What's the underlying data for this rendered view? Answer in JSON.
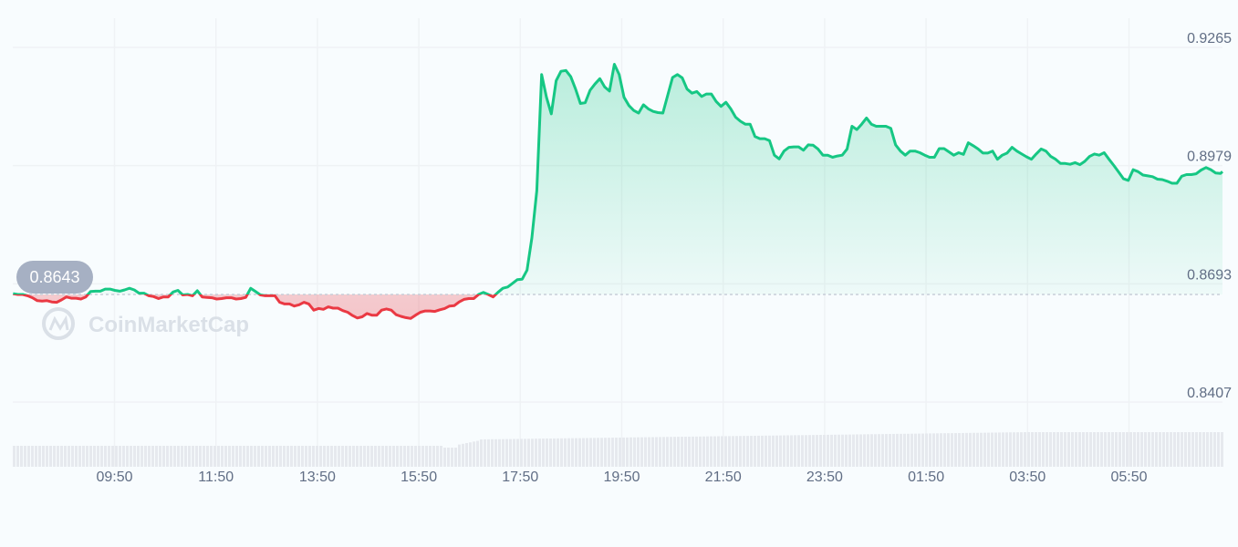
{
  "chart_data": {
    "type": "line",
    "watermark": "CoinMarketCap",
    "open_price_label": "0.8643",
    "open_price": 0.8643,
    "x_ticks": [
      "09:50",
      "11:50",
      "13:50",
      "15:50",
      "17:50",
      "19:50",
      "21:50",
      "23:50",
      "01:50",
      "03:50",
      "05:50"
    ],
    "y_ticks": [
      "0.9265",
      "0.8979",
      "0.8693",
      "0.8407"
    ],
    "y_tick_values": [
      0.9265,
      0.8979,
      0.8693,
      0.8407
    ],
    "x_range_hours": [
      -2.0,
      21.9
    ],
    "x_tick_hours": [
      0,
      2,
      4,
      6,
      8,
      10,
      12,
      14,
      16,
      18,
      20
    ],
    "ylim": [
      0.8385,
      0.929
    ],
    "colors": {
      "up": "#16c784",
      "down": "#ea3943",
      "grid": "#eff2f5",
      "badge": "#a6b0c3",
      "volume": "#e6e9ee"
    },
    "series": [
      {
        "points": [
          [
            -2.0,
            0.8645
          ],
          [
            -1.9,
            0.8643
          ],
          [
            -1.8,
            0.8643
          ],
          [
            -1.7,
            0.864
          ],
          [
            -1.6,
            0.8635
          ],
          [
            -1.5,
            0.8628
          ],
          [
            -1.4,
            0.8627
          ],
          [
            -1.3,
            0.8628
          ],
          [
            -1.2,
            0.8625
          ],
          [
            -1.1,
            0.8624
          ],
          [
            -1.0,
            0.863
          ],
          [
            -0.9,
            0.8637
          ],
          [
            -0.8,
            0.8634
          ],
          [
            -0.7,
            0.8634
          ],
          [
            -0.6,
            0.8632
          ],
          [
            -0.5,
            0.8637
          ],
          [
            -0.4,
            0.865
          ],
          [
            -0.3,
            0.8651
          ],
          [
            -0.2,
            0.8651
          ],
          [
            -0.1,
            0.8656
          ],
          [
            0.0,
            0.8656
          ],
          [
            0.1,
            0.8653
          ],
          [
            0.2,
            0.8651
          ],
          [
            0.3,
            0.8654
          ],
          [
            0.4,
            0.8658
          ],
          [
            0.5,
            0.8654
          ],
          [
            0.6,
            0.8646
          ],
          [
            0.7,
            0.8646
          ],
          [
            0.8,
            0.864
          ],
          [
            0.9,
            0.8638
          ],
          [
            1.0,
            0.8633
          ],
          [
            1.1,
            0.8637
          ],
          [
            1.2,
            0.8637
          ],
          [
            1.3,
            0.8649
          ],
          [
            1.4,
            0.8653
          ],
          [
            1.5,
            0.8642
          ],
          [
            1.6,
            0.8643
          ],
          [
            1.7,
            0.864
          ],
          [
            1.8,
            0.8652
          ],
          [
            1.9,
            0.8637
          ],
          [
            2.0,
            0.8636
          ],
          [
            2.1,
            0.8635
          ],
          [
            2.2,
            0.8632
          ],
          [
            2.3,
            0.8633
          ],
          [
            2.4,
            0.8635
          ],
          [
            2.5,
            0.8635
          ],
          [
            2.6,
            0.8632
          ],
          [
            2.7,
            0.8633
          ],
          [
            2.8,
            0.8636
          ],
          [
            2.9,
            0.8658
          ],
          [
            3.0,
            0.865
          ],
          [
            3.1,
            0.8642
          ],
          [
            3.2,
            0.864
          ],
          [
            3.3,
            0.864
          ],
          [
            3.4,
            0.864
          ],
          [
            3.5,
            0.8624
          ],
          [
            3.6,
            0.862
          ],
          [
            3.7,
            0.862
          ],
          [
            3.8,
            0.8615
          ],
          [
            3.9,
            0.8618
          ],
          [
            4.0,
            0.8624
          ],
          [
            4.1,
            0.862
          ],
          [
            4.2,
            0.8605
          ],
          [
            4.3,
            0.8609
          ],
          [
            4.4,
            0.8607
          ],
          [
            4.5,
            0.8613
          ],
          [
            4.6,
            0.861
          ],
          [
            4.7,
            0.861
          ],
          [
            4.8,
            0.8604
          ],
          [
            4.9,
            0.86
          ],
          [
            5.0,
            0.8592
          ],
          [
            5.1,
            0.8586
          ],
          [
            5.2,
            0.8589
          ],
          [
            5.3,
            0.8597
          ],
          [
            5.4,
            0.8593
          ],
          [
            5.5,
            0.8593
          ],
          [
            5.6,
            0.8605
          ],
          [
            5.7,
            0.8608
          ],
          [
            5.8,
            0.8605
          ],
          [
            5.9,
            0.8594
          ],
          [
            6.0,
            0.859
          ],
          [
            6.1,
            0.8587
          ],
          [
            6.2,
            0.8585
          ],
          [
            6.3,
            0.8593
          ],
          [
            6.4,
            0.86
          ],
          [
            6.5,
            0.8603
          ],
          [
            6.6,
            0.8603
          ],
          [
            6.7,
            0.8602
          ],
          [
            6.8,
            0.8606
          ],
          [
            6.9,
            0.8609
          ],
          [
            7.0,
            0.8615
          ],
          [
            7.1,
            0.8616
          ],
          [
            7.2,
            0.8625
          ],
          [
            7.3,
            0.8631
          ],
          [
            7.4,
            0.8633
          ],
          [
            7.5,
            0.8633
          ],
          [
            7.6,
            0.8643
          ],
          [
            7.7,
            0.8648
          ],
          [
            7.8,
            0.8643
          ],
          [
            7.9,
            0.8637
          ],
          [
            8.0,
            0.8648
          ],
          [
            8.1,
            0.8658
          ],
          [
            8.2,
            0.8661
          ],
          [
            8.3,
            0.867
          ],
          [
            8.4,
            0.8679
          ],
          [
            8.5,
            0.868
          ],
          [
            8.6,
            0.8702
          ],
          [
            8.7,
            0.878
          ],
          [
            8.8,
            0.8894
          ],
          [
            8.9,
            0.9175
          ],
          [
            9.0,
            0.912
          ],
          [
            9.1,
            0.908
          ],
          [
            9.2,
            0.916
          ],
          [
            9.3,
            0.9183
          ],
          [
            9.4,
            0.9185
          ],
          [
            9.5,
            0.917
          ],
          [
            9.6,
            0.914
          ],
          [
            9.7,
            0.9105
          ],
          [
            9.8,
            0.9107
          ],
          [
            9.9,
            0.9137
          ],
          [
            10.0,
            0.9152
          ],
          [
            10.1,
            0.9165
          ],
          [
            10.2,
            0.9145
          ],
          [
            10.3,
            0.9135
          ],
          [
            10.4,
            0.92
          ],
          [
            10.5,
            0.9175
          ],
          [
            10.6,
            0.912
          ],
          [
            10.7,
            0.91
          ],
          [
            10.8,
            0.9088
          ],
          [
            10.9,
            0.9082
          ],
          [
            11.0,
            0.9102
          ],
          [
            11.1,
            0.9092
          ],
          [
            11.2,
            0.9086
          ],
          [
            11.3,
            0.9083
          ],
          [
            11.4,
            0.9082
          ],
          [
            11.5,
            0.9125
          ],
          [
            11.6,
            0.9168
          ],
          [
            11.7,
            0.9175
          ],
          [
            11.8,
            0.9167
          ],
          [
            11.9,
            0.914
          ],
          [
            12.0,
            0.913
          ],
          [
            12.1,
            0.9134
          ],
          [
            12.2,
            0.9122
          ],
          [
            12.3,
            0.9128
          ],
          [
            12.4,
            0.9128
          ],
          [
            12.5,
            0.911
          ],
          [
            12.6,
            0.9098
          ],
          [
            12.7,
            0.9108
          ],
          [
            12.8,
            0.9092
          ],
          [
            12.9,
            0.9072
          ],
          [
            13.0,
            0.9062
          ],
          [
            13.1,
            0.9055
          ],
          [
            13.2,
            0.9055
          ],
          [
            13.3,
            0.9025
          ],
          [
            13.4,
            0.902
          ],
          [
            13.5,
            0.902
          ],
          [
            13.6,
            0.9015
          ],
          [
            13.7,
            0.898
          ],
          [
            13.8,
            0.8971
          ],
          [
            13.9,
            0.899
          ],
          [
            14.0,
            0.8999
          ],
          [
            14.1,
            0.9
          ],
          [
            14.2,
            0.9
          ],
          [
            14.3,
            0.8992
          ],
          [
            14.4,
            0.9005
          ],
          [
            14.5,
            0.9004
          ],
          [
            14.6,
            0.8995
          ],
          [
            14.7,
            0.898
          ],
          [
            14.8,
            0.898
          ],
          [
            14.9,
            0.8975
          ],
          [
            15.0,
            0.8978
          ],
          [
            15.1,
            0.898
          ],
          [
            15.2,
            0.8995
          ],
          [
            15.3,
            0.905
          ],
          [
            15.4,
            0.9042
          ],
          [
            15.5,
            0.9055
          ],
          [
            15.6,
            0.907
          ],
          [
            15.7,
            0.9055
          ],
          [
            15.8,
            0.905
          ],
          [
            15.9,
            0.905
          ],
          [
            16.0,
            0.905
          ],
          [
            16.1,
            0.9045
          ],
          [
            16.2,
            0.9005
          ],
          [
            16.3,
            0.899
          ],
          [
            16.4,
            0.898
          ],
          [
            16.5,
            0.899
          ],
          [
            16.6,
            0.899
          ],
          [
            16.7,
            0.8986
          ],
          [
            16.8,
            0.898
          ],
          [
            16.9,
            0.8975
          ],
          [
            17.0,
            0.8975
          ],
          [
            17.1,
            0.8996
          ],
          [
            17.2,
            0.8996
          ],
          [
            17.3,
            0.8988
          ],
          [
            17.4,
            0.898
          ],
          [
            17.5,
            0.8986
          ],
          [
            17.6,
            0.8982
          ],
          [
            17.7,
            0.901
          ],
          [
            17.8,
            0.9003
          ],
          [
            17.9,
            0.8995
          ],
          [
            18.0,
            0.8985
          ],
          [
            18.1,
            0.8985
          ],
          [
            18.2,
            0.899
          ],
          [
            18.3,
            0.897
          ],
          [
            18.4,
            0.898
          ],
          [
            18.5,
            0.8985
          ],
          [
            18.6,
            0.8999
          ],
          [
            18.7,
            0.899
          ],
          [
            18.8,
            0.8983
          ],
          [
            18.9,
            0.8976
          ],
          [
            19.0,
            0.897
          ],
          [
            19.1,
            0.8983
          ],
          [
            19.2,
            0.8995
          ],
          [
            19.3,
            0.899
          ],
          [
            19.4,
            0.8977
          ],
          [
            19.5,
            0.897
          ],
          [
            19.6,
            0.896
          ],
          [
            19.7,
            0.896
          ],
          [
            19.8,
            0.8958
          ],
          [
            19.9,
            0.8962
          ],
          [
            20.0,
            0.8957
          ],
          [
            20.1,
            0.8965
          ],
          [
            20.2,
            0.8977
          ],
          [
            20.3,
            0.8983
          ],
          [
            20.4,
            0.898
          ],
          [
            20.5,
            0.8986
          ],
          [
            20.6,
            0.897
          ],
          [
            20.7,
            0.8955
          ],
          [
            20.8,
            0.8939
          ],
          [
            20.9,
            0.8923
          ],
          [
            21.0,
            0.8919
          ],
          [
            21.1,
            0.8945
          ],
          [
            21.2,
            0.894
          ],
          [
            21.3,
            0.8932
          ],
          [
            21.4,
            0.893
          ],
          [
            21.5,
            0.8928
          ],
          [
            21.6,
            0.8922
          ],
          [
            21.7,
            0.8921
          ],
          [
            21.8,
            0.8917
          ],
          [
            21.9,
            0.8912
          ],
          [
            22.0,
            0.8912
          ],
          [
            22.1,
            0.8929
          ],
          [
            22.2,
            0.8933
          ],
          [
            22.3,
            0.8933
          ],
          [
            22.4,
            0.8935
          ],
          [
            22.5,
            0.8944
          ],
          [
            22.6,
            0.895
          ],
          [
            22.7,
            0.8945
          ],
          [
            22.8,
            0.8937
          ],
          [
            22.9,
            0.8936
          ],
          [
            23.0,
            0.894
          ]
        ],
        "fit_range": [
          -2.0,
          23.0
        ],
        "fit_target_x": [
          -2.0,
          21.9
        ]
      }
    ]
  }
}
